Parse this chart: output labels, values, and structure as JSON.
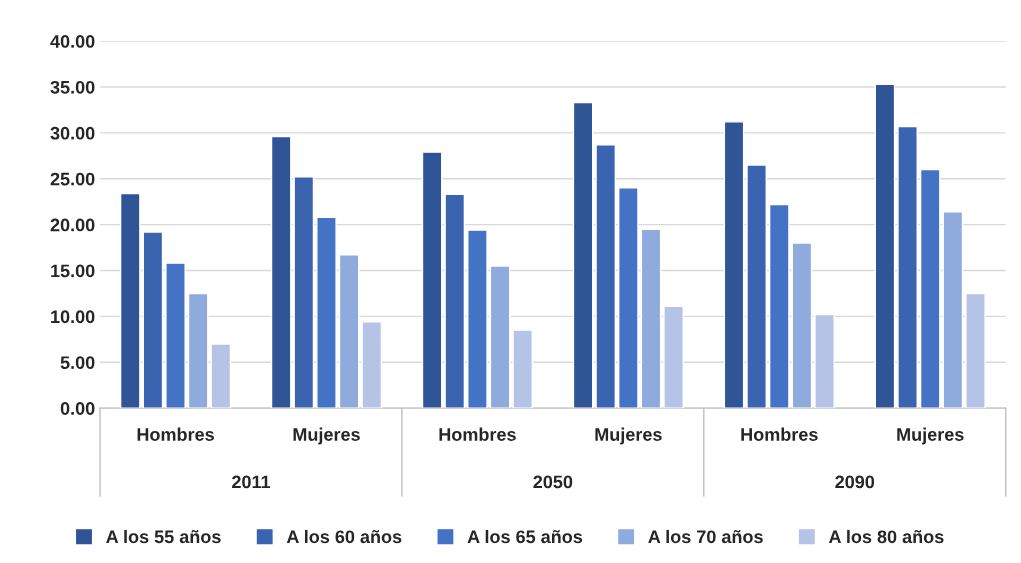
{
  "chart_data": {
    "type": "bar",
    "categories": [
      "Hombres",
      "Mujeres",
      "Hombres",
      "Mujeres",
      "Hombres",
      "Mujeres"
    ],
    "annotations": [
      "2011",
      "2050",
      "2090"
    ],
    "series": [
      {
        "name": "A los 55 años",
        "color": "#2f5597",
        "values": [
          23.4,
          29.6,
          27.9,
          33.3,
          31.2,
          35.3
        ]
      },
      {
        "name": "A los 60 años",
        "color": "#3a64b0",
        "values": [
          19.2,
          25.2,
          23.3,
          28.7,
          26.5,
          30.7
        ]
      },
      {
        "name": "A los 65 años",
        "color": "#4472c4",
        "values": [
          15.8,
          20.8,
          19.4,
          24.0,
          22.2,
          26.0
        ]
      },
      {
        "name": "A los 70 años",
        "color": "#8faadc",
        "values": [
          12.5,
          16.7,
          15.5,
          19.5,
          18.0,
          21.4
        ]
      },
      {
        "name": "A los 80 años",
        "color": "#b4c3e6",
        "values": [
          7.0,
          9.4,
          8.5,
          11.1,
          10.2,
          12.5
        ]
      }
    ],
    "ylim": [
      0,
      40
    ],
    "yticks": [
      {
        "value": 0,
        "label": "0.00"
      },
      {
        "value": 5,
        "label": "5.00"
      },
      {
        "value": 10,
        "label": "10.00"
      },
      {
        "value": 15,
        "label": "15.00"
      },
      {
        "value": 20,
        "label": "20.00"
      },
      {
        "value": 25,
        "label": "25.00"
      },
      {
        "value": 30,
        "label": "30.00"
      },
      {
        "value": 35,
        "label": "35.00"
      },
      {
        "value": 40,
        "label": "40.00"
      }
    ],
    "grid": "y",
    "legend": "bottom"
  }
}
